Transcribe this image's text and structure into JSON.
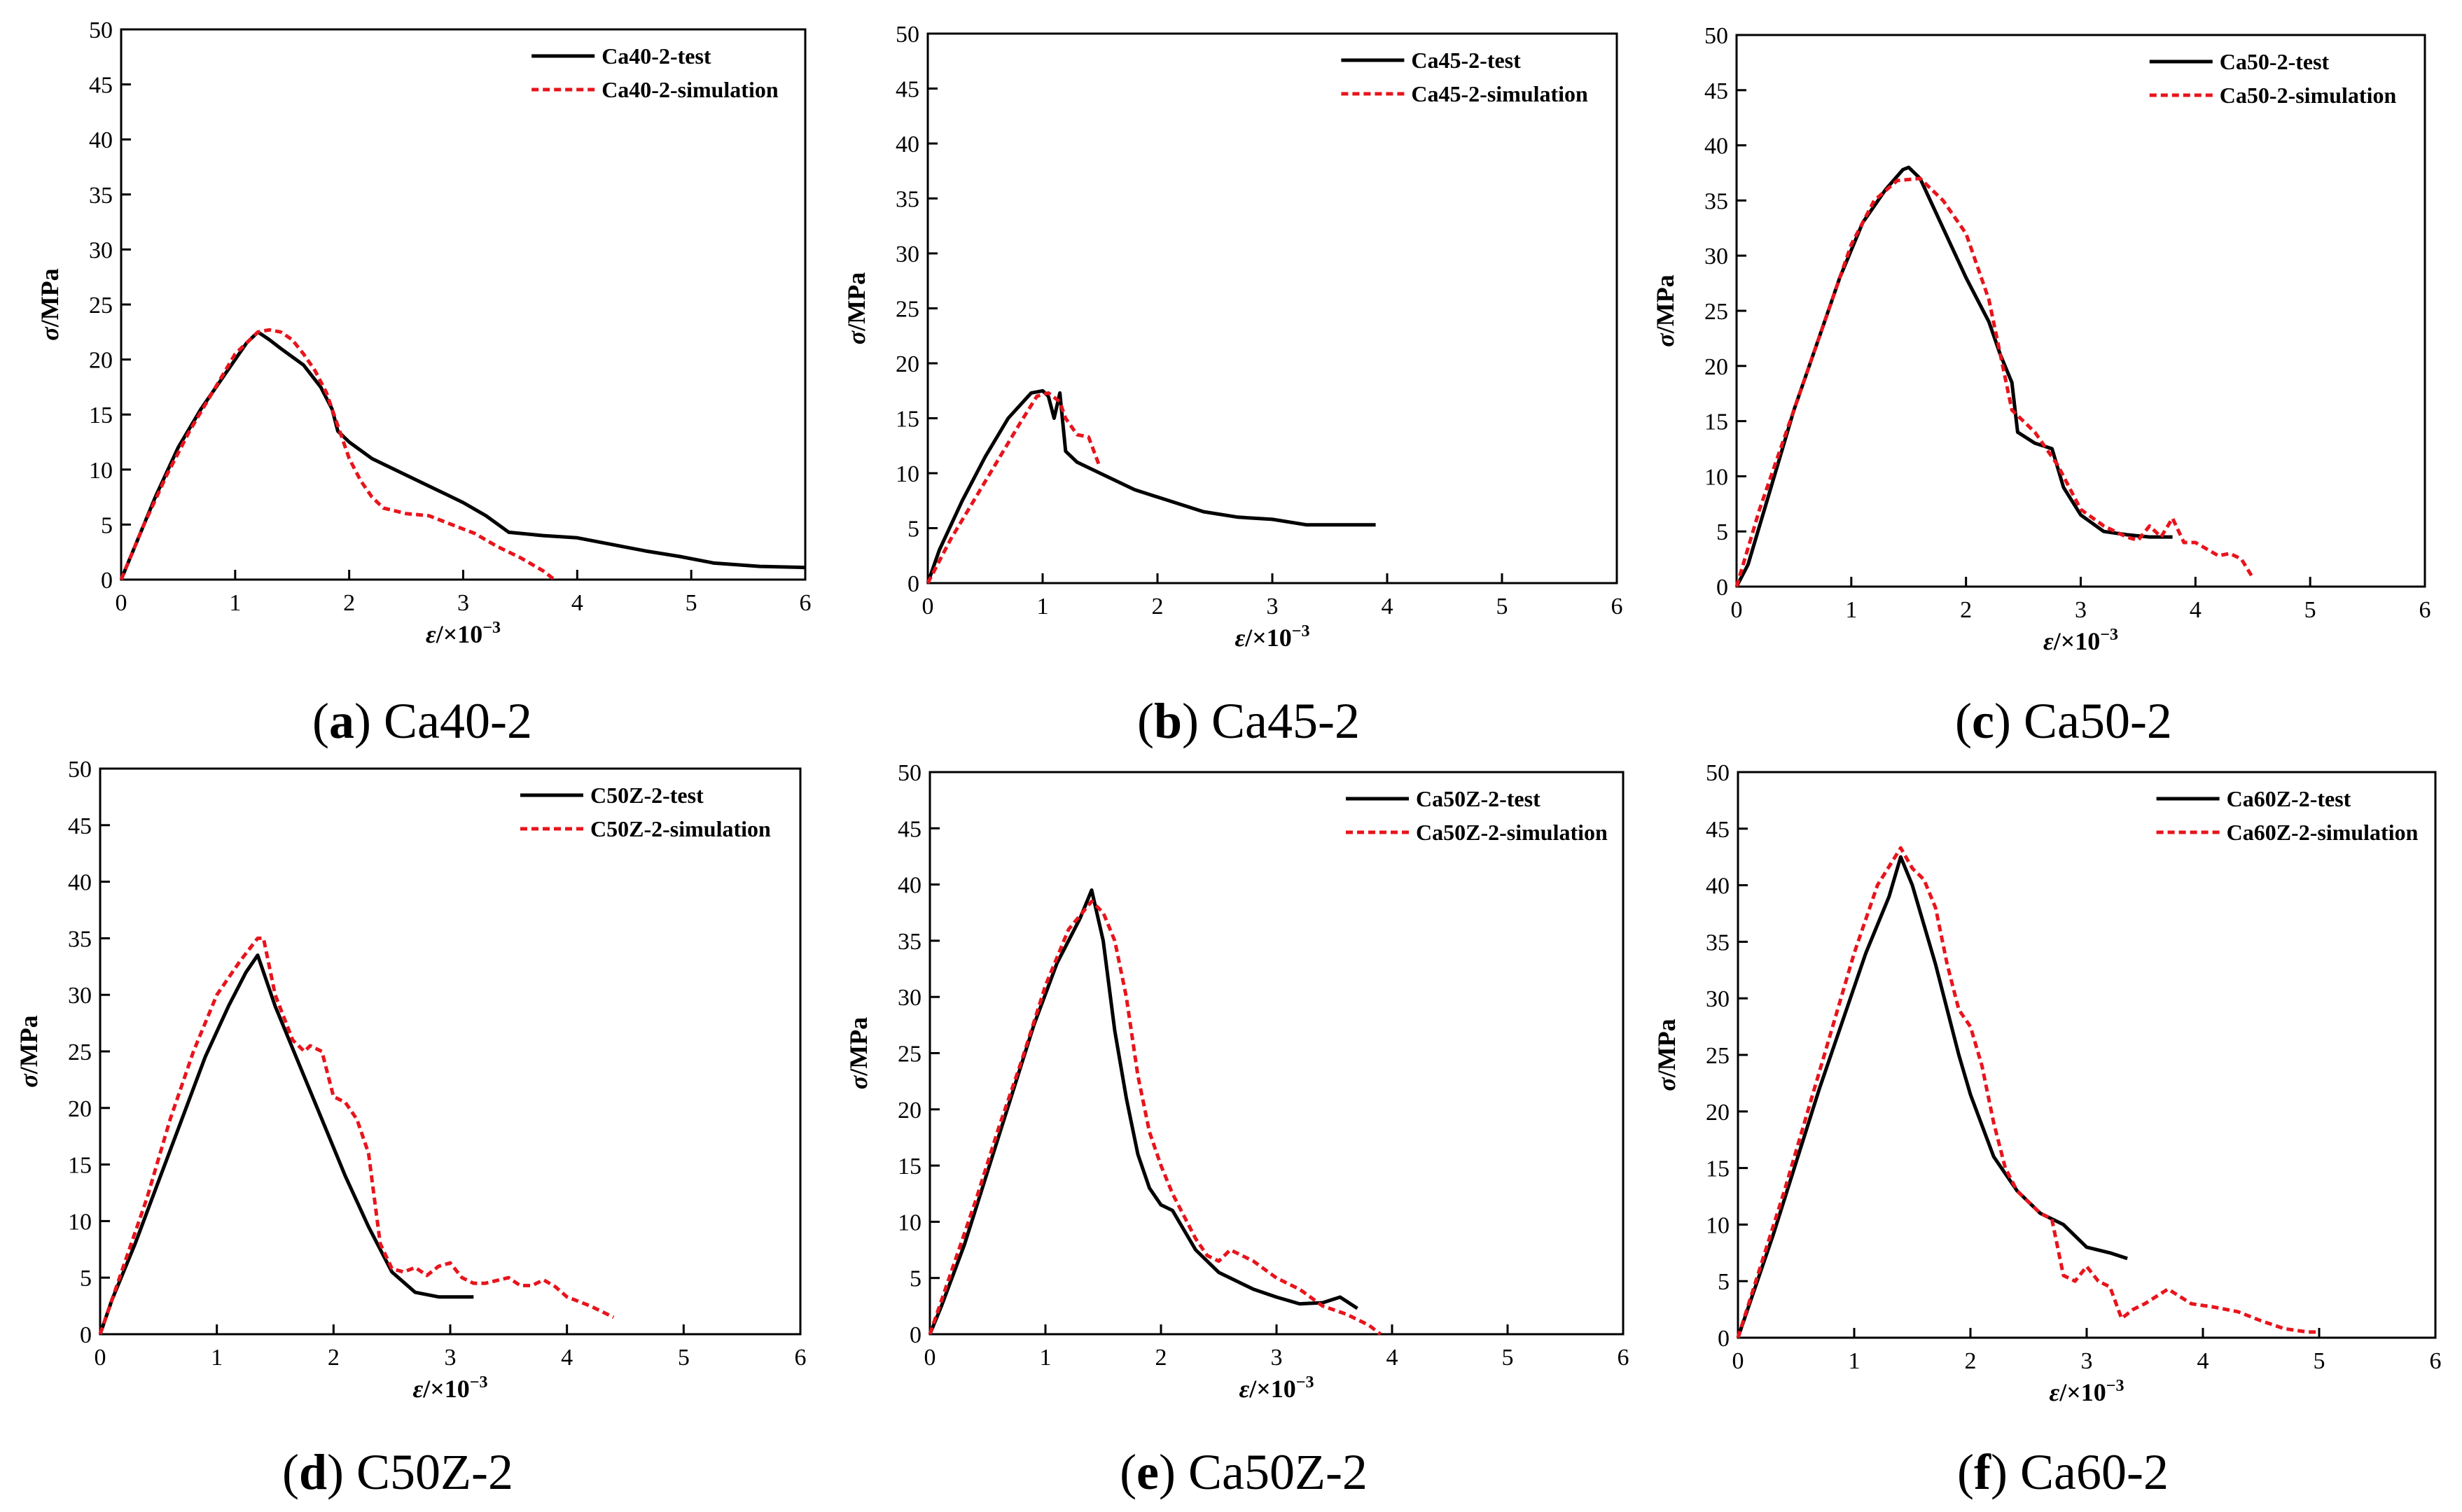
{
  "colors": {
    "test": "#000000",
    "simulation": "#e8141c",
    "axis": "#000000",
    "background": "#ffffff"
  },
  "chart_data": [
    {
      "type": "line",
      "caption_letter": "a",
      "caption_text": " Ca40-2",
      "xlabel_symbol": "ε",
      "xlabel_unit": "/×10",
      "xlabel_exp": "−3",
      "ylabel_symbol": "σ",
      "ylabel_unit": "/MPa",
      "xlim": [
        0,
        6
      ],
      "ylim": [
        0,
        50
      ],
      "xticks": [
        "0",
        "1",
        "2",
        "3",
        "4",
        "5",
        "6"
      ],
      "yticks": [
        "0",
        "5",
        "10",
        "15",
        "20",
        "25",
        "30",
        "35",
        "40",
        "45",
        "50"
      ],
      "grid": false,
      "legend_position": "top-right",
      "series": [
        {
          "name": "Ca40-2-test",
          "style": "solid",
          "x": [
            0,
            0.1,
            0.3,
            0.5,
            0.7,
            0.9,
            1.1,
            1.2,
            1.3,
            1.4,
            1.6,
            1.75,
            1.85,
            1.9,
            2.0,
            2.2,
            2.5,
            2.8,
            3.0,
            3.2,
            3.4,
            3.7,
            4.0,
            4.3,
            4.6,
            4.9,
            5.2,
            5.6,
            6.0
          ],
          "y": [
            0,
            2.5,
            7.5,
            12,
            15.5,
            18.5,
            21.5,
            22.5,
            21.8,
            21,
            19.5,
            17.5,
            15.5,
            13.5,
            12.5,
            11,
            9.5,
            8,
            7,
            5.8,
            4.3,
            4,
            3.8,
            3.2,
            2.6,
            2.1,
            1.5,
            1.2,
            1.1
          ]
        },
        {
          "name": "Ca40-2-simulation",
          "style": "dashed",
          "x": [
            0,
            0.2,
            0.4,
            0.6,
            0.8,
            1.0,
            1.2,
            1.3,
            1.4,
            1.5,
            1.6,
            1.7,
            1.8,
            1.9,
            2.0,
            2.1,
            2.2,
            2.3,
            2.5,
            2.7,
            2.9,
            3.1,
            3.3,
            3.5,
            3.7,
            3.8
          ],
          "y": [
            0,
            5,
            9.5,
            13.5,
            17,
            20.5,
            22.5,
            22.7,
            22.5,
            21.8,
            20.5,
            19,
            17,
            14,
            11,
            9,
            7.5,
            6.5,
            6,
            5.8,
            5,
            4.2,
            3,
            2,
            0.8,
            0
          ]
        }
      ]
    },
    {
      "type": "line",
      "caption_letter": "b",
      "caption_text": " Ca45-2",
      "xlabel_symbol": "ε",
      "xlabel_unit": "/×10",
      "xlabel_exp": "−3",
      "ylabel_symbol": "σ",
      "ylabel_unit": "/MPa",
      "xlim": [
        0,
        6
      ],
      "ylim": [
        0,
        50
      ],
      "xticks": [
        "0",
        "1",
        "2",
        "3",
        "4",
        "5",
        "6"
      ],
      "yticks": [
        "0",
        "5",
        "10",
        "15",
        "20",
        "25",
        "30",
        "35",
        "40",
        "45",
        "50"
      ],
      "grid": false,
      "legend_position": "top-right",
      "series": [
        {
          "name": "Ca45-2-test",
          "style": "solid",
          "x": [
            0,
            0.1,
            0.3,
            0.5,
            0.7,
            0.9,
            1.0,
            1.05,
            1.1,
            1.15,
            1.2,
            1.3,
            1.5,
            1.8,
            2.1,
            2.4,
            2.7,
            3.0,
            3.3,
            3.6,
            3.9
          ],
          "y": [
            0,
            3,
            7.5,
            11.5,
            15,
            17.3,
            17.5,
            17,
            15,
            17.3,
            12,
            11,
            10,
            8.5,
            7.5,
            6.5,
            6,
            5.8,
            5.3,
            5.3,
            5.3
          ]
        },
        {
          "name": "Ca45-2-simulation",
          "style": "dashed",
          "x": [
            0,
            0.2,
            0.4,
            0.6,
            0.8,
            0.95,
            1.05,
            1.15,
            1.2,
            1.3,
            1.4,
            1.5
          ],
          "y": [
            0,
            4,
            7.5,
            11,
            14.5,
            17,
            17.3,
            16.5,
            15,
            13.5,
            13.3,
            10.5
          ]
        }
      ]
    },
    {
      "type": "line",
      "caption_letter": "c",
      "caption_text": " Ca50-2",
      "xlabel_symbol": "ε",
      "xlabel_unit": "/×10",
      "xlabel_exp": "−3",
      "ylabel_symbol": "σ",
      "ylabel_unit": "/MPa",
      "xlim": [
        0,
        6
      ],
      "ylim": [
        0,
        50
      ],
      "xticks": [
        "0",
        "1",
        "2",
        "3",
        "4",
        "5",
        "6"
      ],
      "yticks": [
        "0",
        "5",
        "10",
        "15",
        "20",
        "25",
        "30",
        "35",
        "40",
        "45",
        "50"
      ],
      "grid": false,
      "legend_position": "top-right",
      "series": [
        {
          "name": "Ca50-2-test",
          "style": "solid",
          "x": [
            0,
            0.1,
            0.3,
            0.5,
            0.7,
            0.9,
            1.1,
            1.3,
            1.45,
            1.5,
            1.6,
            1.8,
            2.0,
            2.2,
            2.3,
            2.4,
            2.45,
            2.6,
            2.75,
            2.85,
            3.0,
            3.2,
            3.4,
            3.6,
            3.8
          ],
          "y": [
            0,
            2,
            9,
            16,
            22,
            28,
            33,
            36,
            37.8,
            38,
            37,
            32.5,
            28,
            24,
            21,
            18.5,
            14,
            13,
            12.5,
            9,
            6.5,
            5,
            4.7,
            4.5,
            4.5
          ]
        },
        {
          "name": "Ca50-2-simulation",
          "style": "dashed",
          "x": [
            0,
            0.2,
            0.4,
            0.6,
            0.8,
            1.0,
            1.2,
            1.4,
            1.6,
            1.8,
            2.0,
            2.2,
            2.4,
            2.6,
            2.8,
            3.0,
            3.2,
            3.4,
            3.5,
            3.6,
            3.7,
            3.8,
            3.9,
            4.0,
            4.2,
            4.3,
            4.4,
            4.5
          ],
          "y": [
            0,
            7,
            13,
            19,
            25,
            31,
            35,
            36.8,
            37,
            35,
            32,
            26,
            16,
            14,
            11,
            7,
            5.5,
            4.5,
            4.2,
            5.5,
            4.5,
            6.2,
            4,
            4,
            2.8,
            3,
            2.5,
            0.8
          ]
        }
      ]
    },
    {
      "type": "line",
      "caption_letter": "d",
      "caption_text": " C50Z-2",
      "xlabel_symbol": "ε",
      "xlabel_unit": "/×10",
      "xlabel_exp": "−3",
      "ylabel_symbol": "σ",
      "ylabel_unit": "/MPa",
      "xlim": [
        0,
        6
      ],
      "ylim": [
        0,
        50
      ],
      "xticks": [
        "0",
        "1",
        "2",
        "3",
        "4",
        "5",
        "6"
      ],
      "yticks": [
        "0",
        "5",
        "10",
        "15",
        "20",
        "25",
        "30",
        "35",
        "40",
        "45",
        "50"
      ],
      "grid": false,
      "legend_position": "top-right",
      "series": [
        {
          "name": "C50Z-2-test",
          "style": "solid",
          "x": [
            0,
            0.1,
            0.3,
            0.5,
            0.7,
            0.9,
            1.1,
            1.25,
            1.35,
            1.5,
            1.7,
            1.9,
            2.1,
            2.3,
            2.5,
            2.7,
            2.9,
            3.0,
            3.2
          ],
          "y": [
            0,
            3,
            8,
            13.5,
            19,
            24.5,
            29,
            32,
            33.5,
            29,
            24,
            19,
            14,
            9.5,
            5.5,
            3.7,
            3.3,
            3.3,
            3.3
          ]
        },
        {
          "name": "C50Z-2-simulation",
          "style": "dashed",
          "x": [
            0,
            0.2,
            0.4,
            0.6,
            0.8,
            1.0,
            1.2,
            1.35,
            1.4,
            1.5,
            1.65,
            1.75,
            1.8,
            1.9,
            2.0,
            2.1,
            2.2,
            2.3,
            2.4,
            2.5,
            2.6,
            2.7,
            2.8,
            2.9,
            3.0,
            3.1,
            3.2,
            3.3,
            3.5,
            3.6,
            3.7,
            3.8,
            3.9,
            4.0,
            4.2,
            4.4
          ],
          "y": [
            0,
            6,
            12,
            19,
            25,
            30,
            33,
            35,
            35,
            30,
            26,
            25,
            25.5,
            25,
            21,
            20.5,
            19,
            16,
            8,
            5.8,
            5.5,
            5.9,
            5.2,
            6,
            6.3,
            5,
            4.5,
            4.5,
            5,
            4.3,
            4.3,
            4.8,
            4.2,
            3.3,
            2.5,
            1.5
          ]
        }
      ]
    },
    {
      "type": "line",
      "caption_letter": "e",
      "caption_text": " Ca50Z-2",
      "xlabel_symbol": "ε",
      "xlabel_unit": "/×10",
      "xlabel_exp": "−3",
      "ylabel_symbol": "σ",
      "ylabel_unit": "/MPa",
      "xlim": [
        0,
        6
      ],
      "ylim": [
        0,
        50
      ],
      "xticks": [
        "0",
        "1",
        "2",
        "3",
        "4",
        "5",
        "6"
      ],
      "yticks": [
        "0",
        "5",
        "10",
        "15",
        "20",
        "25",
        "30",
        "35",
        "40",
        "45",
        "50"
      ],
      "grid": false,
      "legend_position": "top-right",
      "series": [
        {
          "name": "Ca50Z-2-test",
          "style": "solid",
          "x": [
            0,
            0.1,
            0.3,
            0.5,
            0.7,
            0.9,
            1.1,
            1.3,
            1.4,
            1.5,
            1.6,
            1.7,
            1.8,
            1.9,
            2.0,
            2.1,
            2.3,
            2.5,
            2.8,
            3.0,
            3.2,
            3.4,
            3.55,
            3.7
          ],
          "y": [
            0,
            2.5,
            8,
            14.5,
            21,
            27.5,
            33,
            37,
            39.5,
            35,
            27,
            21,
            16,
            13,
            11.5,
            11,
            7.5,
            5.5,
            4,
            3.3,
            2.7,
            2.8,
            3.3,
            2.3
          ]
        },
        {
          "name": "Ca50Z-2-simulation",
          "style": "dashed",
          "x": [
            0,
            0.2,
            0.4,
            0.6,
            0.8,
            1.0,
            1.2,
            1.4,
            1.5,
            1.6,
            1.7,
            1.8,
            1.9,
            2.0,
            2.1,
            2.2,
            2.3,
            2.4,
            2.5,
            2.6,
            2.8,
            3.0,
            3.2,
            3.4,
            3.6,
            3.8,
            3.9
          ],
          "y": [
            0,
            6,
            12,
            18.5,
            24.5,
            31,
            36,
            38.5,
            37.5,
            35,
            30,
            23,
            18,
            15,
            12.5,
            10.5,
            8.5,
            7,
            6.5,
            7.5,
            6.5,
            5,
            4,
            2.5,
            1.8,
            0.8,
            0
          ]
        }
      ]
    },
    {
      "type": "line",
      "caption_letter": "f",
      "caption_text": " Ca60-2",
      "xlabel_symbol": "ε",
      "xlabel_unit": "/×10",
      "xlabel_exp": "−3",
      "ylabel_symbol": "σ",
      "ylabel_unit": "/MPa",
      "xlim": [
        0,
        6
      ],
      "ylim": [
        0,
        50
      ],
      "xticks": [
        "0",
        "1",
        "2",
        "3",
        "4",
        "5",
        "6"
      ],
      "yticks": [
        "0",
        "5",
        "10",
        "15",
        "20",
        "25",
        "30",
        "35",
        "40",
        "45",
        "50"
      ],
      "grid": false,
      "legend_position": "top-right",
      "series": [
        {
          "name": "Ca60Z-2-test",
          "style": "solid",
          "x": [
            0,
            0.1,
            0.3,
            0.5,
            0.7,
            0.9,
            1.1,
            1.3,
            1.4,
            1.5,
            1.6,
            1.7,
            1.8,
            1.9,
            2.0,
            2.2,
            2.4,
            2.6,
            2.8,
            2.9,
            3.0,
            3.2,
            3.35
          ],
          "y": [
            0,
            3,
            9,
            15.5,
            22,
            28,
            34,
            39,
            42.5,
            40,
            36.5,
            33,
            29,
            25,
            21.5,
            16,
            13,
            11,
            10,
            9,
            8,
            7.5,
            7
          ]
        },
        {
          "name": "Ca60Z-2-simulation",
          "style": "dashed",
          "x": [
            0,
            0.2,
            0.4,
            0.6,
            0.8,
            1.0,
            1.2,
            1.4,
            1.5,
            1.6,
            1.7,
            1.8,
            1.9,
            2.0,
            2.1,
            2.2,
            2.3,
            2.4,
            2.5,
            2.6,
            2.7,
            2.8,
            2.9,
            3.0,
            3.1,
            3.2,
            3.3,
            3.4,
            3.5,
            3.7,
            3.9,
            4.1,
            4.3,
            4.5,
            4.7,
            4.9,
            5.0
          ],
          "y": [
            0,
            6.5,
            13,
            20,
            27,
            34,
            40,
            43.3,
            41.5,
            40.5,
            38,
            33,
            29,
            27.5,
            24,
            19,
            15,
            13,
            12,
            11,
            10.5,
            5.5,
            5,
            6.3,
            5,
            4.5,
            1.7,
            2.5,
            3,
            4.3,
            3,
            2.7,
            2.3,
            1.5,
            0.8,
            0.5,
            0.5
          ]
        }
      ]
    }
  ]
}
